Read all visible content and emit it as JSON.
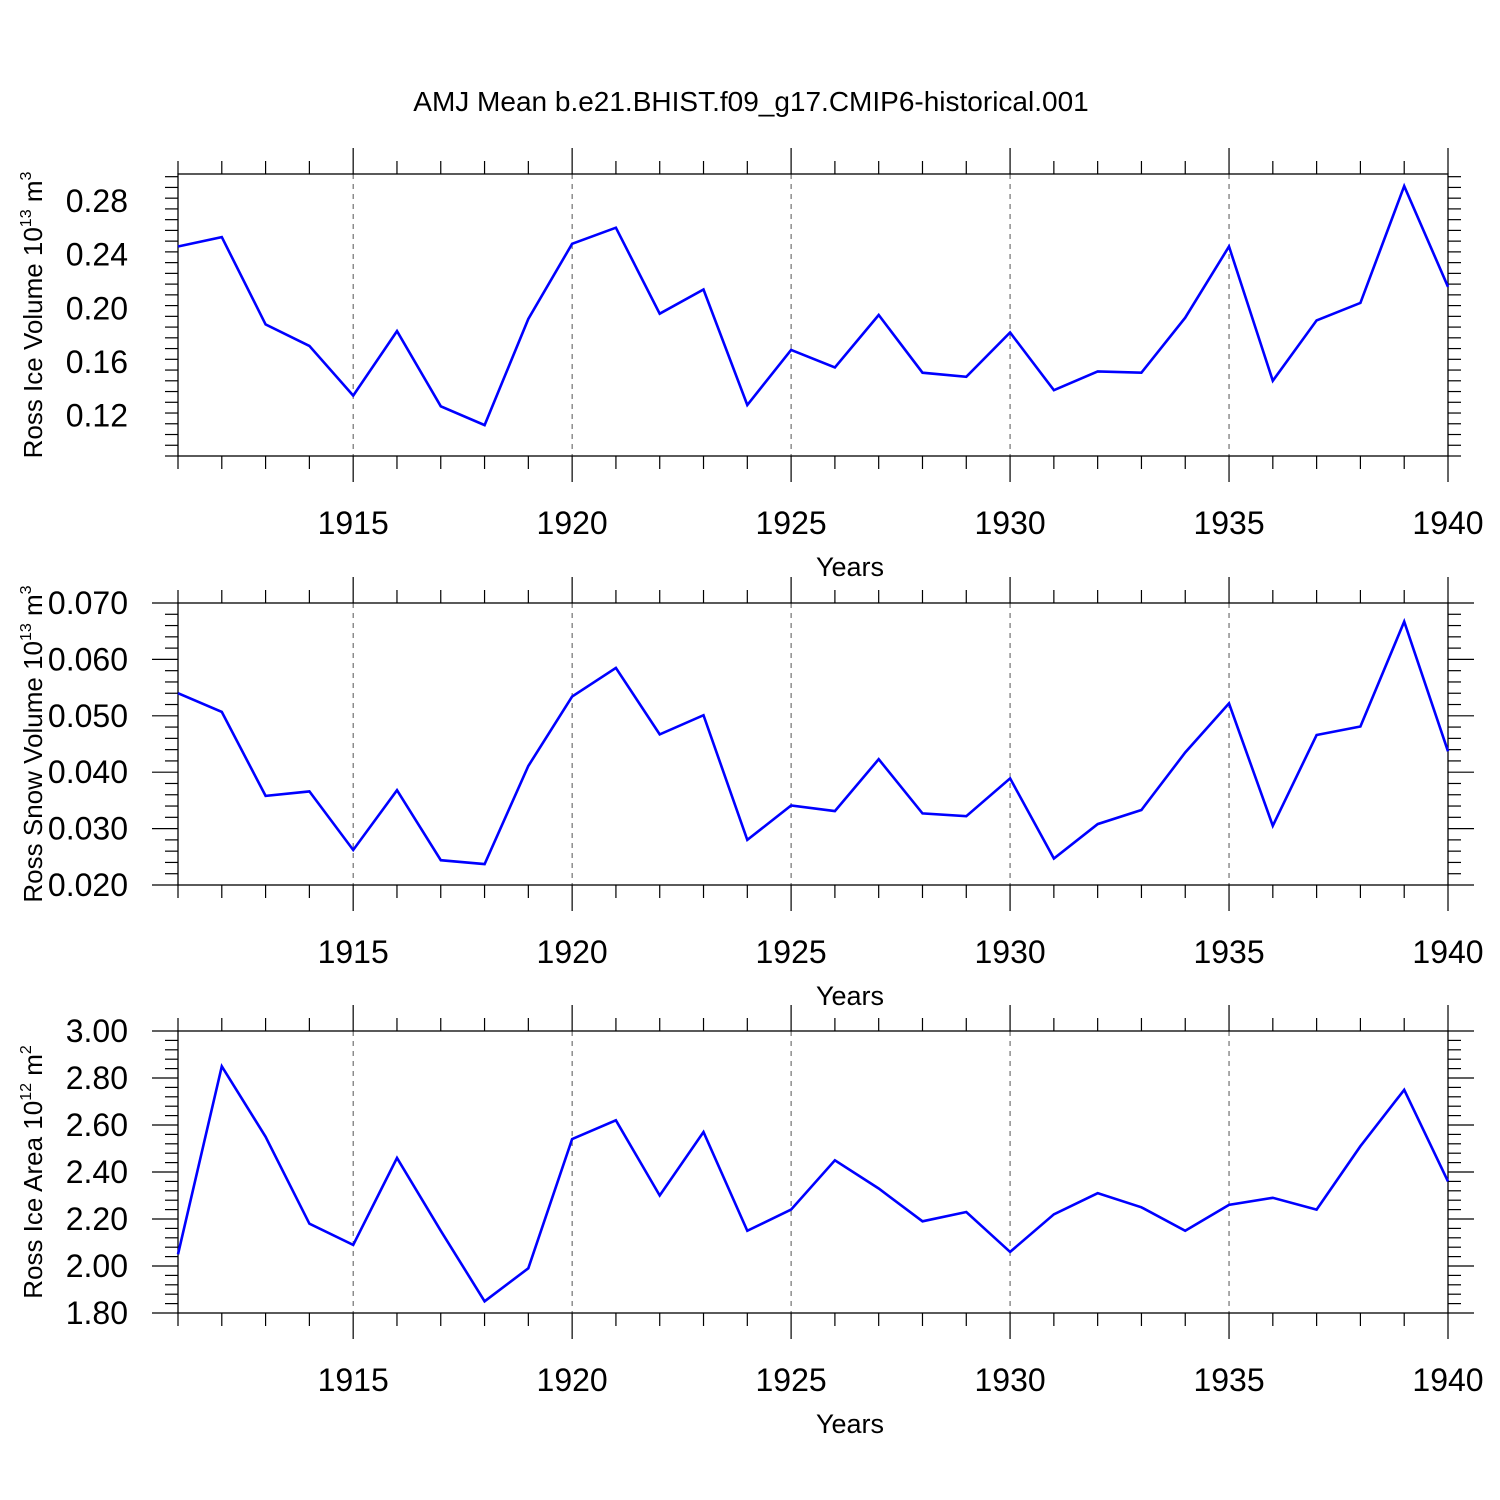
{
  "title": "AMJ Mean b.e21.BHIST.f09_g17.CMIP6-historical.001",
  "line_color": "#0000ff",
  "chart_data": [
    {
      "type": "line",
      "xlabel": "Years",
      "ylabel": {
        "text": "Ross Ice Volume 10",
        "sup": "13",
        "unit": " m",
        "unit_sup": "3"
      },
      "xlim": [
        1911,
        1940
      ],
      "ylim": [
        0.09,
        0.3
      ],
      "x_ticks": [
        1915,
        1920,
        1925,
        1930,
        1935,
        1940
      ],
      "y_ticks": [
        0.12,
        0.16,
        0.2,
        0.24,
        0.28
      ],
      "y_tick_labels": [
        "0.12",
        "0.16",
        "0.20",
        "0.24",
        "0.28"
      ],
      "grid": "vertical dashed at major x ticks",
      "x": [
        1911,
        1912,
        1913,
        1914,
        1915,
        1916,
        1917,
        1918,
        1919,
        1920,
        1921,
        1922,
        1923,
        1924,
        1925,
        1926,
        1927,
        1928,
        1929,
        1930,
        1931,
        1932,
        1933,
        1934,
        1935,
        1936,
        1937,
        1938,
        1939,
        1940
      ],
      "values": [
        0.246,
        0.253,
        0.188,
        0.172,
        0.135,
        0.183,
        0.127,
        0.113,
        0.192,
        0.248,
        0.26,
        0.196,
        0.214,
        0.128,
        0.169,
        0.156,
        0.195,
        0.152,
        0.149,
        0.182,
        0.139,
        0.153,
        0.152,
        0.193,
        0.246,
        0.146,
        0.191,
        0.204,
        0.291,
        0.216
      ]
    },
    {
      "type": "line",
      "xlabel": "Years",
      "ylabel": {
        "text": "Ross Snow Volume 10",
        "sup": "13",
        "unit": " m",
        "unit_sup": "3"
      },
      "xlim": [
        1911,
        1940
      ],
      "ylim": [
        0.02,
        0.07
      ],
      "x_ticks": [
        1915,
        1920,
        1925,
        1930,
        1935,
        1940
      ],
      "y_ticks": [
        0.02,
        0.03,
        0.04,
        0.05,
        0.06,
        0.07
      ],
      "y_tick_labels": [
        "0.020",
        "0.030",
        "0.040",
        "0.050",
        "0.060",
        "0.070"
      ],
      "grid": "vertical dashed at major x ticks",
      "x": [
        1911,
        1912,
        1913,
        1914,
        1915,
        1916,
        1917,
        1918,
        1919,
        1920,
        1921,
        1922,
        1923,
        1924,
        1925,
        1926,
        1927,
        1928,
        1929,
        1930,
        1931,
        1932,
        1933,
        1934,
        1935,
        1936,
        1937,
        1938,
        1939,
        1940
      ],
      "values": [
        0.054,
        0.0507,
        0.0358,
        0.0366,
        0.0262,
        0.0368,
        0.0244,
        0.0237,
        0.0411,
        0.0534,
        0.0585,
        0.0467,
        0.0501,
        0.028,
        0.0341,
        0.0331,
        0.0423,
        0.0327,
        0.0322,
        0.0389,
        0.0247,
        0.0308,
        0.0333,
        0.0435,
        0.0522,
        0.0305,
        0.0466,
        0.0481,
        0.0667,
        0.0437
      ]
    },
    {
      "type": "line",
      "xlabel": "Years",
      "ylabel": {
        "text": "Ross Ice Area 10",
        "sup": "12",
        "unit": " m",
        "unit_sup": "2"
      },
      "xlim": [
        1911,
        1940
      ],
      "ylim": [
        1.8,
        3.0
      ],
      "x_ticks": [
        1915,
        1920,
        1925,
        1930,
        1935,
        1940
      ],
      "y_ticks": [
        1.8,
        2.0,
        2.2,
        2.4,
        2.6,
        2.8,
        3.0
      ],
      "y_tick_labels": [
        "1.80",
        "2.00",
        "2.20",
        "2.40",
        "2.60",
        "2.80",
        "3.00"
      ],
      "grid": "vertical dashed at major x ticks",
      "x": [
        1911,
        1912,
        1913,
        1914,
        1915,
        1916,
        1917,
        1918,
        1919,
        1920,
        1921,
        1922,
        1923,
        1924,
        1925,
        1926,
        1927,
        1928,
        1929,
        1930,
        1931,
        1932,
        1933,
        1934,
        1935,
        1936,
        1937,
        1938,
        1939,
        1940
      ],
      "values": [
        2.05,
        2.85,
        2.55,
        2.18,
        2.09,
        2.46,
        2.15,
        1.85,
        1.99,
        2.54,
        2.62,
        2.3,
        2.57,
        2.15,
        2.24,
        2.45,
        2.33,
        2.19,
        2.23,
        2.06,
        2.22,
        2.31,
        2.25,
        2.15,
        2.26,
        2.29,
        2.24,
        2.51,
        2.75,
        2.36
      ]
    }
  ]
}
